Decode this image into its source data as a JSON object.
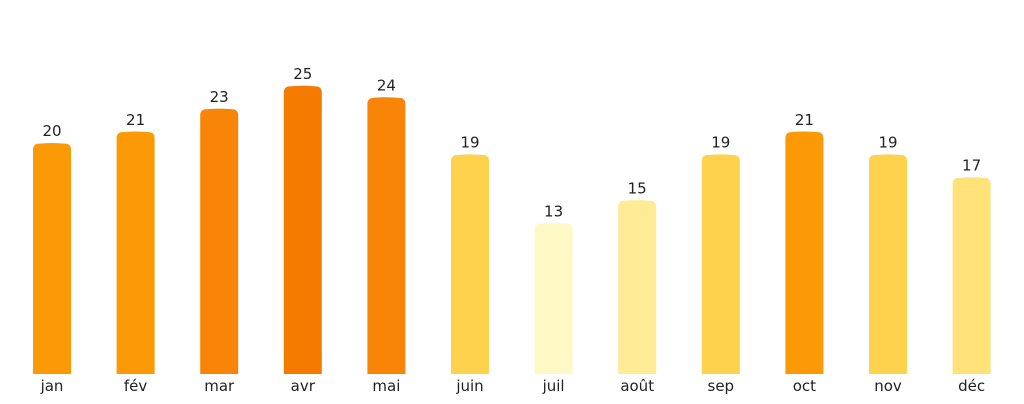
{
  "chart_data": {
    "type": "bar",
    "categories": [
      "jan",
      "fév",
      "mar",
      "avr",
      "mai",
      "juin",
      "juil",
      "août",
      "sep",
      "oct",
      "nov",
      "déc"
    ],
    "values": [
      20,
      21,
      23,
      25,
      24,
      19,
      13,
      15,
      19,
      21,
      19,
      17
    ],
    "colors": [
      "#fb9a06",
      "#fb9a06",
      "#f88507",
      "#f57b00",
      "#f88507",
      "#fed24d",
      "#fff9c6",
      "#ffeb96",
      "#fed24d",
      "#fb9a06",
      "#fed24d",
      "#ffe27a"
    ],
    "ylim": [
      0,
      25
    ],
    "grid": false,
    "data_labels": true
  }
}
